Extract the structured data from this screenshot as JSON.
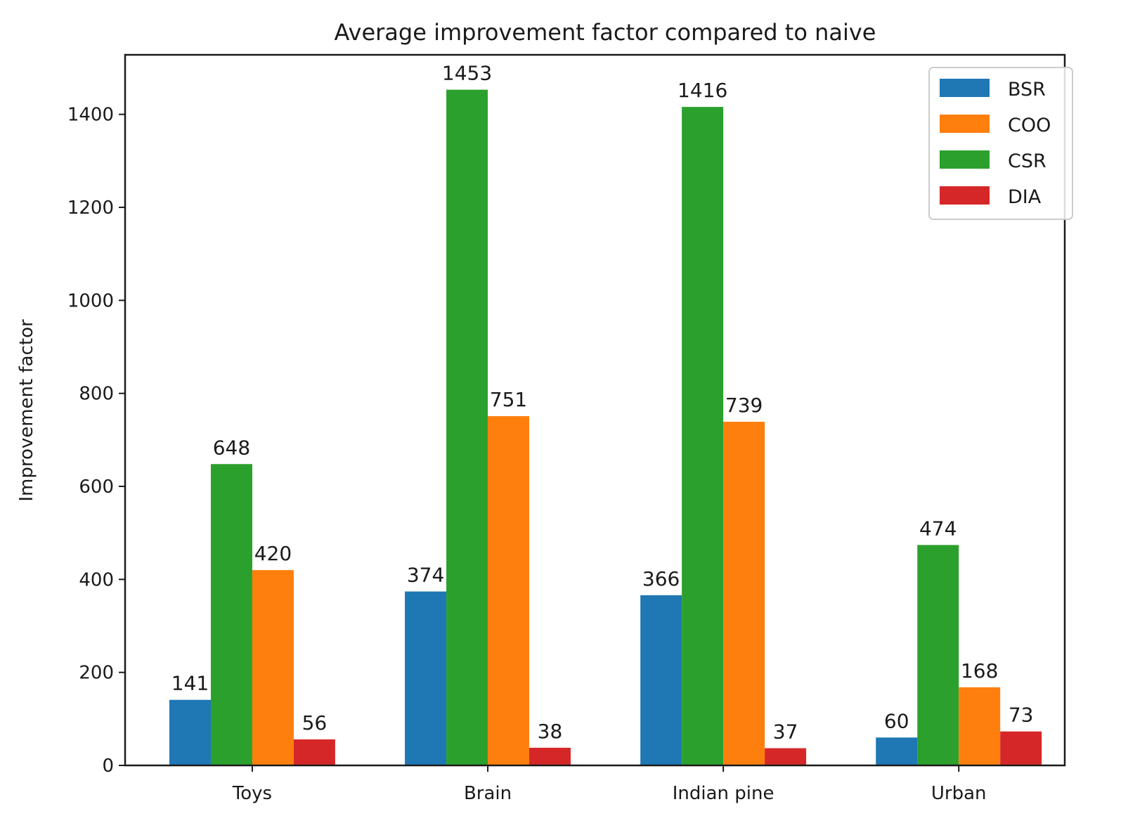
{
  "chart_data": {
    "type": "bar",
    "title": "Average improvement factor compared to naive",
    "xlabel": "",
    "ylabel": "Improvement factor",
    "categories": [
      "Toys",
      "Brain",
      "Indian pine",
      "Urban"
    ],
    "bar_order": [
      "BSR",
      "CSR",
      "COO",
      "DIA"
    ],
    "series": [
      {
        "name": "BSR",
        "color": "#1f77b4",
        "values": [
          141,
          374,
          366,
          60
        ]
      },
      {
        "name": "COO",
        "color": "#ff7f0e",
        "values": [
          420,
          751,
          739,
          168
        ]
      },
      {
        "name": "CSR",
        "color": "#2ca02c",
        "values": [
          648,
          1453,
          1416,
          474
        ]
      },
      {
        "name": "DIA",
        "color": "#d62728",
        "values": [
          56,
          38,
          37,
          73
        ]
      }
    ],
    "ylim": [
      0,
      1528
    ],
    "yticks": [
      0,
      200,
      400,
      600,
      800,
      1000,
      1200,
      1400
    ],
    "grid": false,
    "legend": "top-right",
    "data_labels": true
  }
}
